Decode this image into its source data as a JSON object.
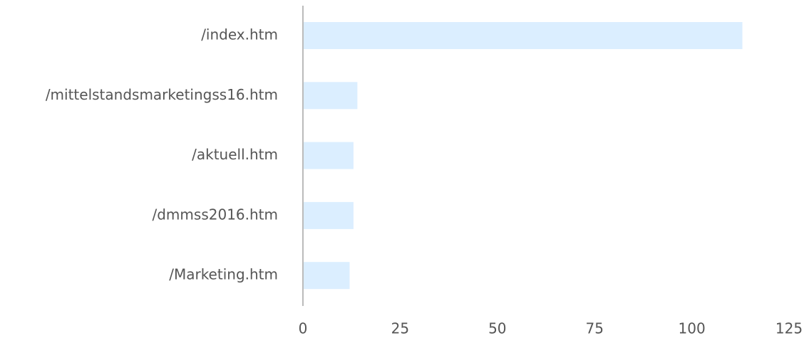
{
  "chart_data": {
    "type": "hbar",
    "categories": [
      "/index.htm",
      "/mittelstandsmarketingss16.htm",
      "/aktuell.htm",
      "/dmmss2016.htm",
      "/Marketing.htm"
    ],
    "values": [
      113,
      14,
      13,
      13,
      12
    ],
    "color": "#dbeeff",
    "xlim": [
      0,
      125
    ],
    "xticks": [
      0,
      25,
      50,
      75,
      100,
      125
    ],
    "grid": false
  }
}
